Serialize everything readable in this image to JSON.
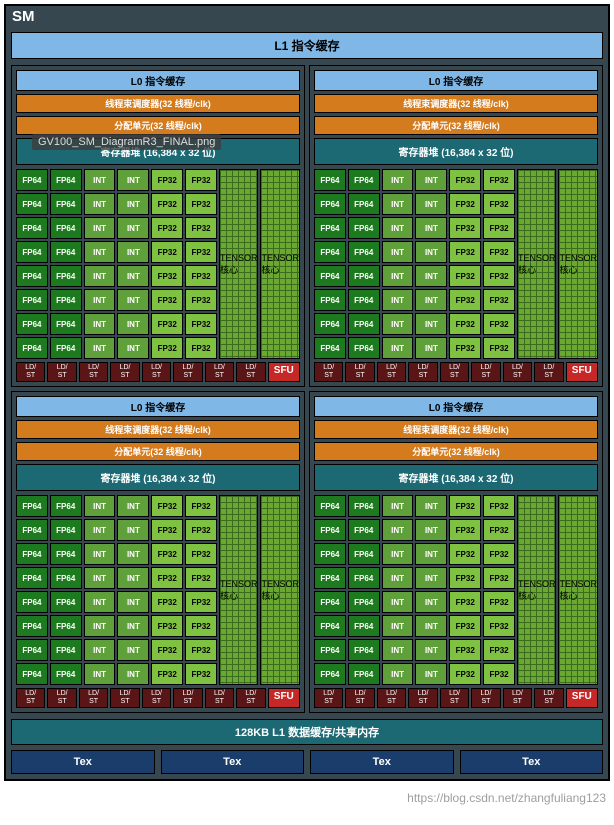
{
  "sm_title": "SM",
  "l1_icache": "L1 指令缓存",
  "l1_dcache": "128KB L1 数据缓存/共享内存",
  "tex_label": "Tex",
  "filename_overlay": "GV100_SM_DiagramR3_FINAL.png",
  "watermark": "https://blog.csdn.net/zhangfuliang123",
  "quad": {
    "l0": "L0 指令缓存",
    "sched": "线程束调度器(32 线程/clk)",
    "dispatch": "分配单元(32 线程/clk)",
    "regfile": "寄存器堆 (16,384 x 32 位)",
    "fp64": "FP64",
    "int": "INT",
    "fp32": "FP32",
    "tensor": "TENSOR\n核心",
    "ldst": "LD/\nST",
    "sfu": "SFU",
    "core_rows": 8
  },
  "colors": {
    "frame": "#37474f",
    "l0_l1i": "#7fb7e6",
    "sched": "#d47b1e",
    "regfile": "#1c6873",
    "fp64": "#1e7a1e",
    "int": "#5fa03a",
    "fp32": "#7fc241",
    "tensor": "#6aa82f",
    "ldst": "#5a1616",
    "sfu": "#c62828",
    "tex": "#1a3d6b"
  }
}
